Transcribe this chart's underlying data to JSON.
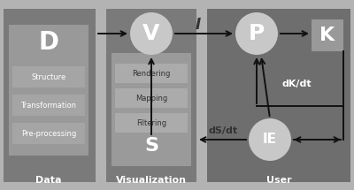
{
  "bg_outer": "#b3b3b3",
  "bg_data_panel": "#7a7a7a",
  "bg_data_inner": "#999999",
  "bg_vis_panel": "#7a7a7a",
  "bg_vis_inner": "#9a9a9a",
  "bg_user_panel": "#6e6e6e",
  "bg_sub_box_data": "#a5a5a5",
  "bg_sub_box_vis": "#ababab",
  "circle_color": "#c8c8c8",
  "square_k_color": "#8a8a8a",
  "text_white": "#ffffff",
  "text_dark": "#222222",
  "text_gray": "#dddddd",
  "arrow_color": "#111111",
  "title_data": "Data",
  "title_vis": "Visualization",
  "title_user": "User",
  "label_D": "D",
  "label_V": "V",
  "label_S": "S",
  "label_P": "P",
  "label_K": "K",
  "label_IE": "IE",
  "label_I": "I",
  "label_dKdt": "dK/dt",
  "label_dSdt": "dS/dt",
  "sub_data": [
    "Structure",
    "Transformation",
    "Pre-processing"
  ],
  "sub_vis": [
    "Rendering",
    "Mapping",
    "Filtering"
  ],
  "figw": 4.0,
  "figh": 2.15,
  "dpi": 100
}
